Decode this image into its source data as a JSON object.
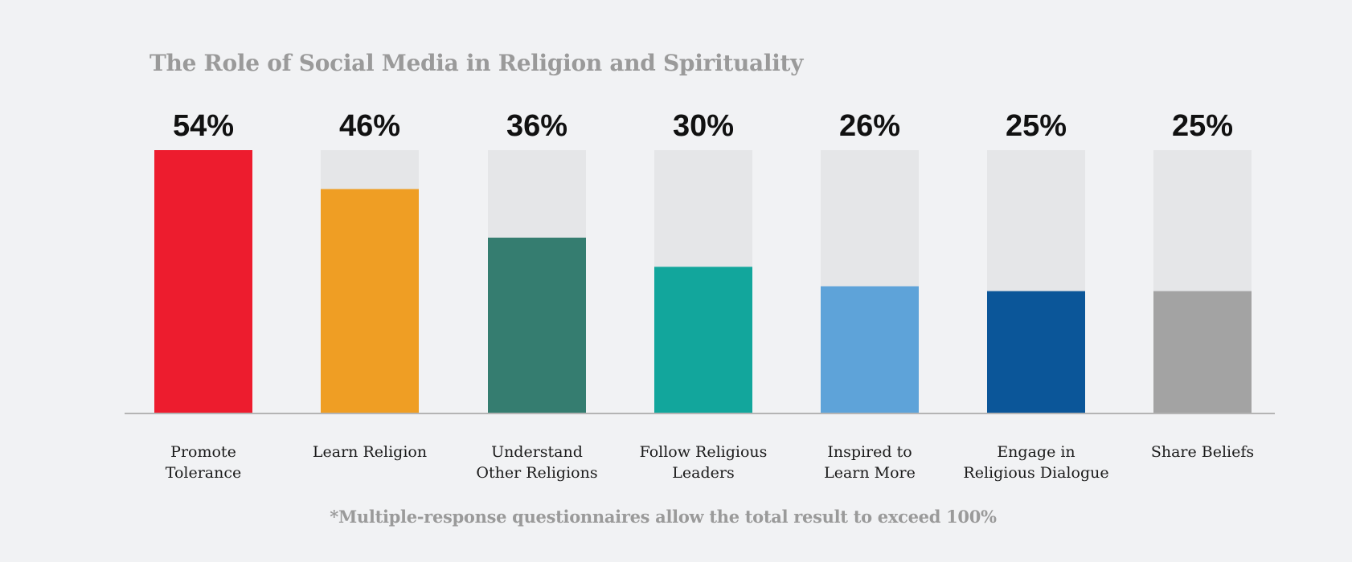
{
  "chart_data": {
    "type": "bar",
    "title": "The Role of Social Media in Religion and Spirituality",
    "categories": [
      "Promote Tolerance",
      "Learn Religion",
      "Understand Other Religions",
      "Follow Religious Leaders",
      "Inspired to Learn More",
      "Engage in Religious Dialogue",
      "Share Beliefs"
    ],
    "category_label_lines": [
      [
        "Promote",
        "Tolerance"
      ],
      [
        "Learn Religion"
      ],
      [
        "Understand",
        "Other Religions"
      ],
      [
        "Follow Religious",
        "Leaders"
      ],
      [
        "Inspired to",
        "Learn More"
      ],
      [
        "Engage in",
        "Religious Dialogue"
      ],
      [
        "Share Beliefs"
      ]
    ],
    "values": [
      54,
      46,
      36,
      30,
      26,
      25,
      25
    ],
    "value_labels": [
      "54%",
      "46%",
      "36%",
      "30%",
      "26%",
      "25%",
      "25%"
    ],
    "colors": [
      "#ed1c2e",
      "#ef9e24",
      "#357d70",
      "#12a69c",
      "#5ea3d9",
      "#0b5699",
      "#a3a3a3"
    ],
    "track_color": "#e5e6e8",
    "baseline_color": "#b4b4b4",
    "ylim": [
      0,
      54
    ],
    "xlabel": "",
    "ylabel": "",
    "grid": false,
    "legend": "none",
    "footnote": "*Multiple-response questionnaires allow the total result to exceed 100%"
  }
}
